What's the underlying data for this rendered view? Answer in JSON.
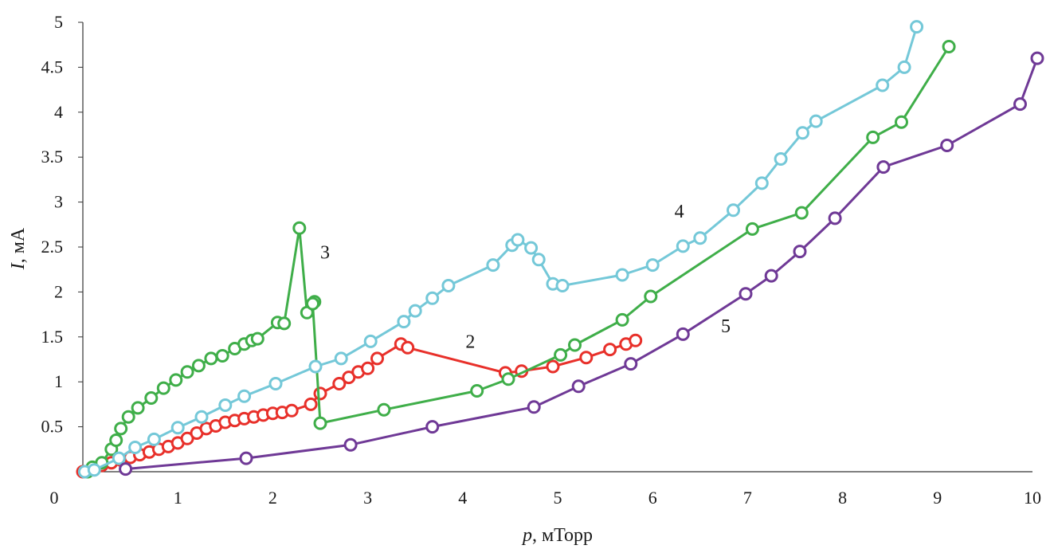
{
  "chart_data": {
    "type": "line",
    "title": "",
    "xlabel_var": "p",
    "xlabel_unit": ", мТорр",
    "ylabel_var": "I",
    "ylabel_unit": ", мА",
    "xlim": [
      0,
      10
    ],
    "ylim": [
      0,
      5
    ],
    "x_ticks": [
      "0",
      "1",
      "2",
      "3",
      "4",
      "5",
      "6",
      "7",
      "8",
      "9",
      "10"
    ],
    "y_ticks": [
      "0.5",
      "1",
      "1.5",
      "2",
      "2.5",
      "3",
      "3.5",
      "4",
      "4.5",
      "5"
    ],
    "grid": false,
    "series": [
      {
        "name": "2",
        "color": "#e8302a",
        "label": "2",
        "label_at": [
          4.08,
          1.38
        ],
        "x": [
          0.0,
          0.1,
          0.2,
          0.3,
          0.4,
          0.5,
          0.6,
          0.7,
          0.8,
          0.9,
          1.0,
          1.1,
          1.2,
          1.3,
          1.4,
          1.5,
          1.6,
          1.7,
          1.8,
          1.9,
          2.0,
          2.1,
          2.2,
          2.4,
          2.5,
          2.7,
          2.8,
          2.9,
          3.0,
          3.1,
          3.35,
          3.42,
          4.45,
          4.62,
          4.95,
          5.3,
          5.55,
          5.72,
          5.82
        ],
        "y": [
          0.0,
          0.04,
          0.07,
          0.1,
          0.13,
          0.16,
          0.19,
          0.22,
          0.25,
          0.28,
          0.32,
          0.37,
          0.43,
          0.48,
          0.51,
          0.55,
          0.57,
          0.59,
          0.61,
          0.63,
          0.65,
          0.66,
          0.68,
          0.75,
          0.87,
          0.98,
          1.05,
          1.11,
          1.15,
          1.26,
          1.42,
          1.38,
          1.1,
          1.12,
          1.17,
          1.27,
          1.36,
          1.42,
          1.46
        ]
      },
      {
        "name": "3",
        "color": "#3fae49",
        "label": "3",
        "label_at": [
          2.55,
          2.37
        ],
        "x": [
          0.05,
          0.1,
          0.2,
          0.3,
          0.35,
          0.4,
          0.48,
          0.58,
          0.72,
          0.85,
          0.98,
          1.1,
          1.22,
          1.35,
          1.47,
          1.6,
          1.7,
          1.78,
          1.84,
          2.05,
          2.12,
          2.28,
          2.36,
          2.44,
          2.42,
          2.5,
          3.17,
          4.15,
          4.48,
          5.03,
          5.18,
          5.68,
          5.98,
          7.05,
          7.57,
          8.32,
          8.62,
          9.12
        ],
        "y": [
          0.0,
          0.05,
          0.1,
          0.25,
          0.35,
          0.48,
          0.61,
          0.71,
          0.82,
          0.93,
          1.02,
          1.11,
          1.18,
          1.26,
          1.29,
          1.37,
          1.42,
          1.46,
          1.48,
          1.66,
          1.65,
          2.71,
          1.77,
          1.89,
          1.87,
          0.54,
          0.69,
          0.9,
          1.03,
          1.3,
          1.41,
          1.69,
          1.95,
          2.7,
          2.88,
          3.72,
          3.89,
          4.73
        ]
      },
      {
        "name": "4",
        "color": "#74c8d8",
        "label": "4",
        "label_at": [
          6.28,
          2.83
        ],
        "x": [
          0.02,
          0.12,
          0.38,
          0.55,
          0.75,
          1.0,
          1.25,
          1.5,
          1.7,
          2.03,
          2.45,
          2.72,
          3.03,
          3.38,
          3.5,
          3.68,
          3.85,
          4.32,
          4.52,
          4.58,
          4.72,
          4.8,
          4.95,
          5.05,
          5.68,
          6.0,
          6.32,
          6.5,
          6.85,
          7.15,
          7.35,
          7.58,
          7.72,
          8.42,
          8.65,
          8.78
        ],
        "y": [
          0.0,
          0.02,
          0.15,
          0.27,
          0.36,
          0.49,
          0.61,
          0.74,
          0.84,
          0.98,
          1.17,
          1.26,
          1.45,
          1.67,
          1.79,
          1.93,
          2.07,
          2.3,
          2.52,
          2.58,
          2.49,
          2.36,
          2.09,
          2.07,
          2.19,
          2.3,
          2.51,
          2.6,
          2.91,
          3.21,
          3.48,
          3.77,
          3.9,
          4.3,
          4.5,
          4.95
        ]
      },
      {
        "name": "5",
        "color": "#6f3996",
        "label": "5",
        "label_at": [
          6.77,
          1.55
        ],
        "x": [
          0.45,
          1.72,
          2.82,
          3.68,
          4.75,
          5.22,
          5.77,
          6.32,
          6.98,
          7.25,
          7.55,
          7.92,
          8.43,
          9.1,
          9.87,
          10.05
        ],
        "y": [
          0.03,
          0.15,
          0.3,
          0.5,
          0.72,
          0.95,
          1.2,
          1.53,
          1.98,
          2.18,
          2.45,
          2.82,
          3.39,
          3.63,
          4.09,
          4.6
        ]
      }
    ]
  }
}
